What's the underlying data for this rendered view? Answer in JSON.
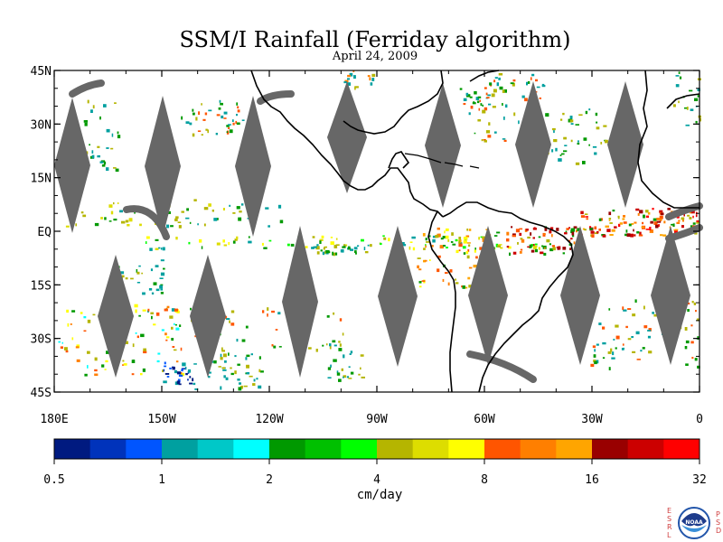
{
  "title": "SSM/I Rainfall (Ferriday algorithm)",
  "date": "April 24, 2009",
  "map": {
    "lon_range": [
      180,
      360
    ],
    "lat_range": [
      -45,
      45
    ],
    "lat_ticks": [
      "45N",
      "30N",
      "15N",
      "EQ",
      "15S",
      "30S",
      "45S"
    ],
    "lon_ticks": [
      "180E",
      "150W",
      "120W",
      "90W",
      "60W",
      "30W",
      "0"
    ],
    "no_data_color": "#676767",
    "coast_color": "#000000"
  },
  "colorbar": {
    "unit": "cm/day",
    "tick_labels": [
      "0.5",
      "1",
      "2",
      "4",
      "8",
      "16",
      "32"
    ],
    "colors": [
      "#001a80",
      "#0033bb",
      "#0055ff",
      "#00a0a0",
      "#00c8c8",
      "#00ffff",
      "#009900",
      "#00c000",
      "#00ff00",
      "#b5b500",
      "#dddd00",
      "#ffff00",
      "#ff5500",
      "#ff7f00",
      "#ffa500",
      "#990000",
      "#cc0000",
      "#ff0000"
    ]
  },
  "logo": {
    "name": "NOAA",
    "left_letters": [
      "E",
      "S",
      "R",
      "L"
    ],
    "right_letters": [
      "P",
      "S",
      "D"
    ]
  }
}
